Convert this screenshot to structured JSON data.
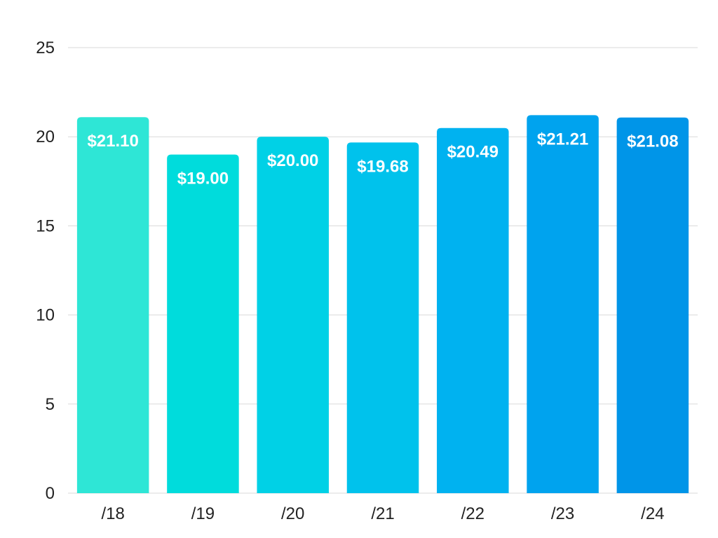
{
  "chart_data": {
    "type": "bar",
    "categories": [
      "/18",
      "/19",
      "/20",
      "/21",
      "/22",
      "/23",
      "/24"
    ],
    "values": [
      21.1,
      19.0,
      20.0,
      19.68,
      20.49,
      21.21,
      21.08
    ],
    "data_labels": [
      "$21.10",
      "$19.00",
      "$20.00",
      "$19.68",
      "$20.49",
      "$21.21",
      "$21.08"
    ],
    "colors": [
      "#2EE6D6",
      "#00DCDC",
      "#00D1E6",
      "#00C2EC",
      "#00B2F0",
      "#00A3EE",
      "#0095E8"
    ],
    "ylim": [
      0,
      25
    ],
    "yticks": [
      0,
      5,
      10,
      15,
      20,
      25
    ],
    "grid": true,
    "title": "",
    "xlabel": "",
    "ylabel": ""
  }
}
